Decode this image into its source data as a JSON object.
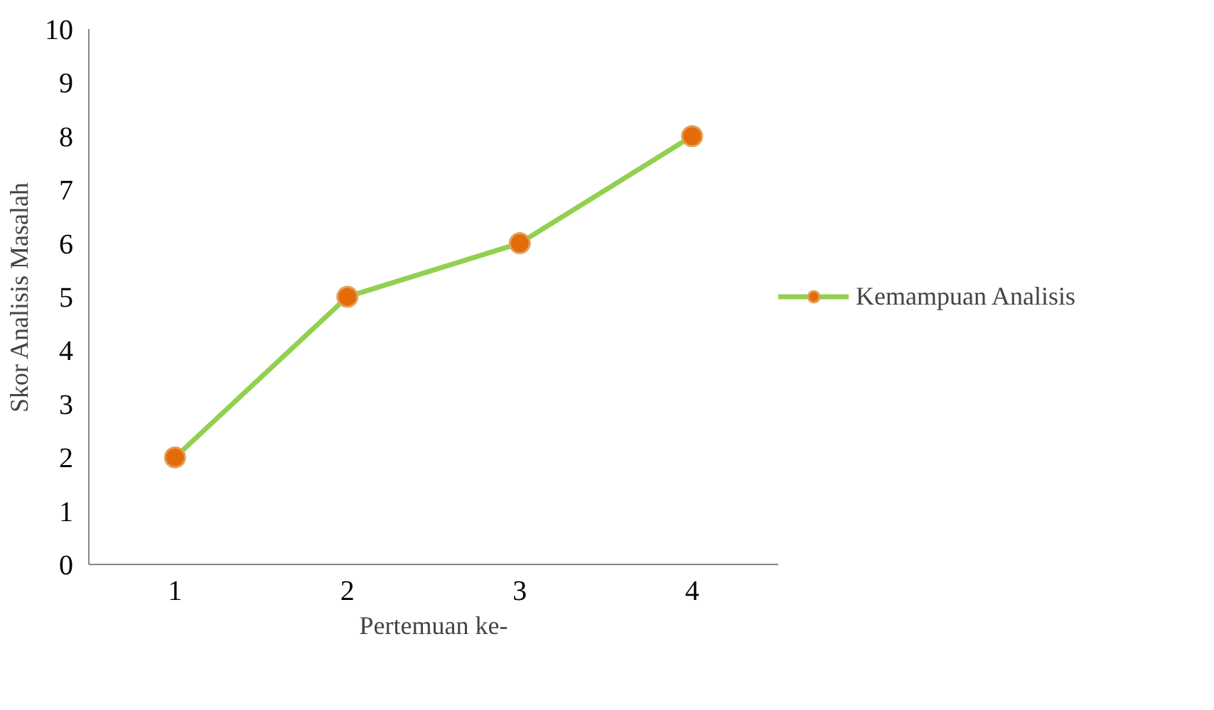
{
  "chart_data": {
    "type": "line",
    "xlabel": "Pertemuan ke-",
    "ylabel": "Skor Analisis Masalah",
    "categories": [
      "1",
      "2",
      "3",
      "4"
    ],
    "series": [
      {
        "name": "Kemampuan Analisis",
        "color": "#92d050",
        "colors": [
          "#e36c09",
          "#e36c09",
          "#e36c09",
          "#e36c09"
        ],
        "values": [
          2,
          5,
          6,
          8
        ]
      }
    ],
    "ylim": [
      0,
      10
    ],
    "yticks": [
      0,
      1,
      2,
      3,
      4,
      5,
      6,
      7,
      8,
      9,
      10
    ],
    "grid": false,
    "legend": "right",
    "marker": "circle",
    "line_style": "solid"
  }
}
